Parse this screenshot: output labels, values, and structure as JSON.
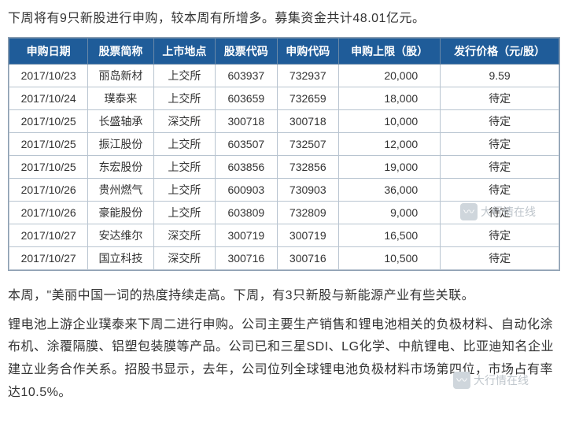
{
  "intro": "下周将有9只新股进行申购，较本周有所增多。募集资金共计48.01亿元。",
  "table": {
    "header_bg": "#1f5c99",
    "header_color": "#ffffff",
    "border_color": "#b8c4d0",
    "columns": [
      "申购日期",
      "股票简称",
      "上市地点",
      "股票代码",
      "申购代码",
      "申购上限（股）",
      "发行价格（元/股）"
    ],
    "rows": [
      [
        "2017/10/23",
        "丽岛新材",
        "上交所",
        "603937",
        "732937",
        "20,000",
        "9.59"
      ],
      [
        "2017/10/24",
        "璞泰来",
        "上交所",
        "603659",
        "732659",
        "18,000",
        "待定"
      ],
      [
        "2017/10/25",
        "长盛轴承",
        "深交所",
        "300718",
        "300718",
        "10,000",
        "待定"
      ],
      [
        "2017/10/25",
        "振江股份",
        "上交所",
        "603507",
        "732507",
        "12,000",
        "待定"
      ],
      [
        "2017/10/25",
        "东宏股份",
        "上交所",
        "603856",
        "732856",
        "19,000",
        "待定"
      ],
      [
        "2017/10/26",
        "贵州燃气",
        "上交所",
        "600903",
        "730903",
        "36,000",
        "待定"
      ],
      [
        "2017/10/26",
        "豪能股份",
        "上交所",
        "603809",
        "732809",
        "9,000",
        "待定"
      ],
      [
        "2017/10/27",
        "安达维尔",
        "深交所",
        "300719",
        "300719",
        "16,500",
        "待定"
      ],
      [
        "2017/10/27",
        "国立科技",
        "深交所",
        "300716",
        "300716",
        "10,500",
        "待定"
      ]
    ]
  },
  "para2": "本周，\"美丽中国一词的热度持续走高。下周，有3只新股与新能源产业有些关联。",
  "para3": "锂电池上游企业璞泰来下周二进行申购。公司主要生产销售和锂电池相关的负极材料、自动化涂布机、涂覆隔膜、铝塑包装膜等产品。公司已和三星SDI、LG化学、中航锂电、比亚迪知名企业建立业务合作关系。招股书显示，去年，公司位列全球锂电池负极材料市场第四位，市场占有率达10.5%。",
  "watermark_text": "大行情在线",
  "watermark_icon": "〰"
}
